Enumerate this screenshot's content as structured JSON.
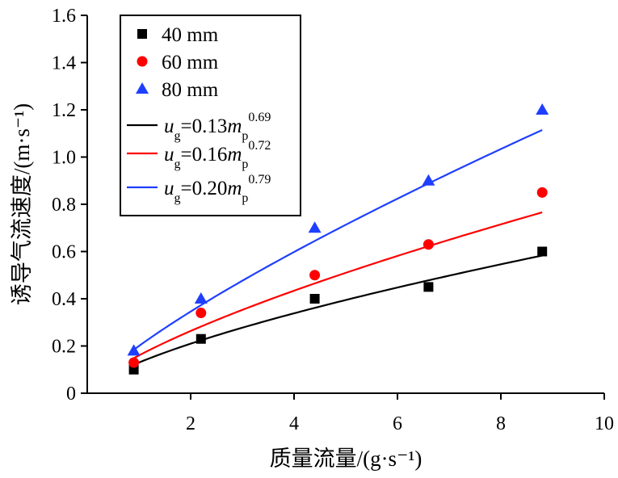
{
  "chart_data": {
    "type": "scatter",
    "xlabel": "质量流量/(g·s⁻¹)",
    "ylabel": "诱导气流速度/(m·s⁻¹)",
    "xlim": [
      0,
      10
    ],
    "ylim": [
      0,
      1.6
    ],
    "x_ticks": [
      2,
      4,
      6,
      8,
      10
    ],
    "y_ticks": [
      0,
      0.2,
      0.4,
      0.6,
      0.8,
      1.0,
      1.2,
      1.4,
      1.6
    ],
    "x_tick_labels": [
      "2",
      "4",
      "6",
      "8",
      "10"
    ],
    "y_tick_labels": [
      "0",
      "0.2",
      "0.4",
      "0.6",
      "0.8",
      "1.0",
      "1.2",
      "1.4",
      "1.6"
    ],
    "grid": false,
    "legend_position": "top-left",
    "x": [
      0.9,
      2.2,
      4.4,
      6.6,
      8.8
    ],
    "series": [
      {
        "name": "40 mm",
        "marker": "square",
        "color": "#000000",
        "values": [
          0.1,
          0.23,
          0.4,
          0.45,
          0.6
        ]
      },
      {
        "name": "60 mm",
        "marker": "circle",
        "color": "#ff0000",
        "values": [
          0.13,
          0.34,
          0.5,
          0.63,
          0.85
        ]
      },
      {
        "name": "80 mm",
        "marker": "triangle",
        "color": "#1f3fff",
        "values": [
          0.18,
          0.4,
          0.7,
          0.9,
          1.2
        ]
      }
    ],
    "fits": [
      {
        "var": "u",
        "var_sub": "g",
        "coef": "=0.13",
        "pred": "m",
        "pred_sub": "p",
        "exp": "0.69",
        "a": 0.13,
        "b": 0.69,
        "color": "#000000"
      },
      {
        "var": "u",
        "var_sub": "g",
        "coef": "=0.16",
        "pred": "m",
        "pred_sub": "p",
        "exp": "0.72",
        "a": 0.16,
        "b": 0.72,
        "color": "#ff0000"
      },
      {
        "var": "u",
        "var_sub": "g",
        "coef": "=0.20",
        "pred": "m",
        "pred_sub": "p",
        "exp": "0.79",
        "a": 0.2,
        "b": 0.79,
        "color": "#1f3fff"
      }
    ]
  }
}
